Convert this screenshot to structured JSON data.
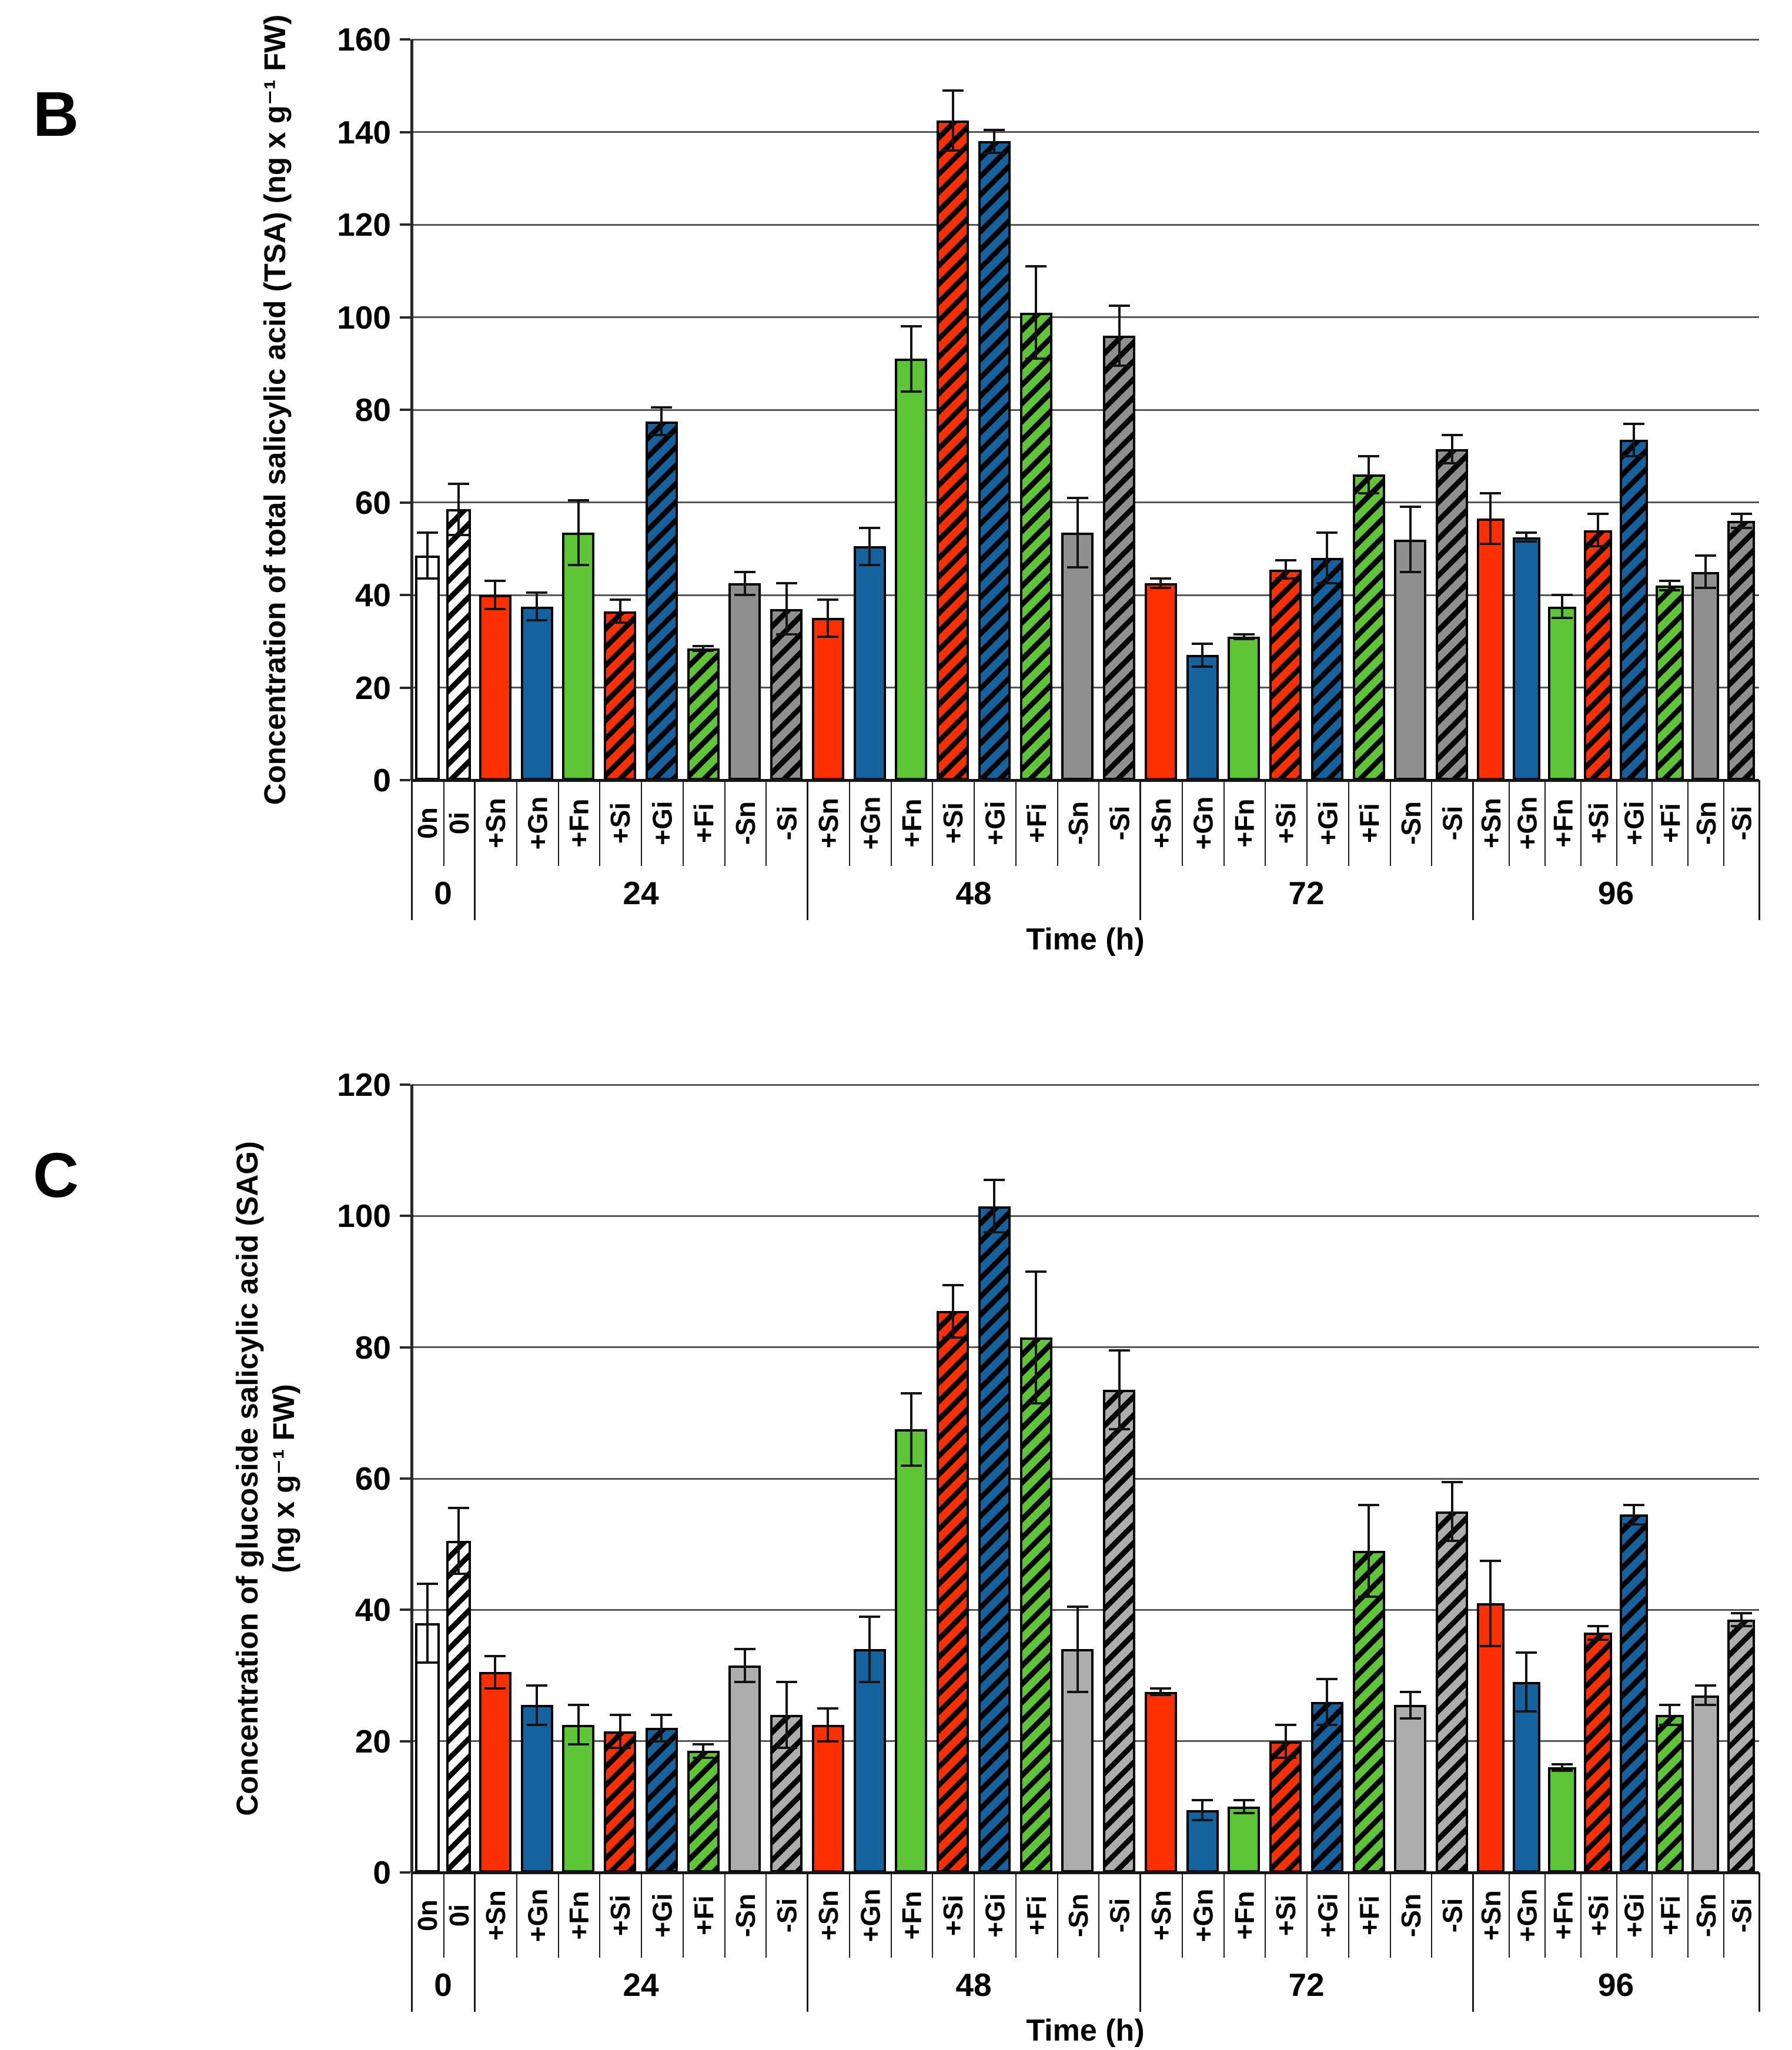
{
  "figure": {
    "panel_letters": [
      "B",
      "C"
    ],
    "treatment_labels": [
      "0n",
      "0i",
      "+Sn",
      "+Gn",
      "+Fn",
      "+Si",
      "+Gi",
      "+Fi",
      "-Sn",
      "-Si"
    ],
    "time_groups": [
      "0",
      "24",
      "48",
      "72",
      "96"
    ]
  },
  "styles": {
    "red": "#FB2F00",
    "blue": "#15639E",
    "green": "#5DC536",
    "gray_b": "#8F8F8F",
    "gray_c": "#ADADAD",
    "white": "#FFFFFF",
    "hatch_stripe": "#000000",
    "gridline_color": "#555555",
    "axis_color": "#161616"
  },
  "chart_data": [
    {
      "type": "bar",
      "panel": "B",
      "title": "",
      "ylabel": "Concentration of total salicylic acid (TSA) (ng x g⁻¹ FW)",
      "ylabel_line2": "",
      "xlabel": "Time (h)",
      "ylim": [
        0,
        160
      ],
      "ytick_step": 20,
      "yticks": [
        0,
        20,
        40,
        60,
        80,
        100,
        120,
        140,
        160
      ],
      "grid": true,
      "legend": "none",
      "group_labels": [
        "0",
        "24",
        "48",
        "72",
        "96"
      ],
      "groups": [
        {
          "time": "0",
          "bars": [
            {
              "label": "0n",
              "value": 48.5,
              "err": 5,
              "color": "white",
              "hatch": false
            },
            {
              "label": "0i",
              "value": 58.5,
              "err": 5.5,
              "color": "white",
              "hatch": true
            }
          ]
        },
        {
          "time": "24",
          "bars": [
            {
              "label": "+Sn",
              "value": 40,
              "err": 3,
              "color": "red",
              "hatch": false
            },
            {
              "label": "+Gn",
              "value": 37.5,
              "err": 3,
              "color": "blue",
              "hatch": false
            },
            {
              "label": "+Fn",
              "value": 53.5,
              "err": 7,
              "color": "green",
              "hatch": false
            },
            {
              "label": "+Si",
              "value": 36.5,
              "err": 2.5,
              "color": "red",
              "hatch": true
            },
            {
              "label": "+Gi",
              "value": 77.5,
              "err": 3,
              "color": "blue",
              "hatch": true
            },
            {
              "label": "+Fi",
              "value": 28.5,
              "err": 0.5,
              "color": "green",
              "hatch": true
            },
            {
              "label": "-Sn",
              "value": 42.5,
              "err": 2.5,
              "color": "gray",
              "hatch": false
            },
            {
              "label": "-Si",
              "value": 37,
              "err": 5.5,
              "color": "gray",
              "hatch": true
            }
          ]
        },
        {
          "time": "48",
          "bars": [
            {
              "label": "+Sn",
              "value": 35,
              "err": 4,
              "color": "red",
              "hatch": false
            },
            {
              "label": "+Gn",
              "value": 50.5,
              "err": 4,
              "color": "blue",
              "hatch": false
            },
            {
              "label": "+Fn",
              "value": 91,
              "err": 7,
              "color": "green",
              "hatch": false
            },
            {
              "label": "+Si",
              "value": 142.5,
              "err": 6.5,
              "color": "red",
              "hatch": true
            },
            {
              "label": "+Gi",
              "value": 138,
              "err": 2.5,
              "color": "blue",
              "hatch": true
            },
            {
              "label": "+Fi",
              "value": 101,
              "err": 10,
              "color": "green",
              "hatch": true
            },
            {
              "label": "-Sn",
              "value": 53.5,
              "err": 7.5,
              "color": "gray",
              "hatch": false
            },
            {
              "label": "-Si",
              "value": 96,
              "err": 6.5,
              "color": "gray",
              "hatch": true
            }
          ]
        },
        {
          "time": "72",
          "bars": [
            {
              "label": "+Sn",
              "value": 42.5,
              "err": 1,
              "color": "red",
              "hatch": false
            },
            {
              "label": "+Gn",
              "value": 27,
              "err": 2.5,
              "color": "blue",
              "hatch": false
            },
            {
              "label": "+Fn",
              "value": 31,
              "err": 0.5,
              "color": "green",
              "hatch": false
            },
            {
              "label": "+Si",
              "value": 45.5,
              "err": 2,
              "color": "red",
              "hatch": true
            },
            {
              "label": "+Gi",
              "value": 48,
              "err": 5.5,
              "color": "blue",
              "hatch": true
            },
            {
              "label": "+Fi",
              "value": 66,
              "err": 4,
              "color": "green",
              "hatch": true
            },
            {
              "label": "-Sn",
              "value": 52,
              "err": 7,
              "color": "gray",
              "hatch": false
            },
            {
              "label": "-Si",
              "value": 71.5,
              "err": 3,
              "color": "gray",
              "hatch": true
            }
          ]
        },
        {
          "time": "96",
          "bars": [
            {
              "label": "+Sn",
              "value": 56.5,
              "err": 5.5,
              "color": "red",
              "hatch": false
            },
            {
              "label": "+Gn",
              "value": 52.5,
              "err": 1,
              "color": "blue",
              "hatch": false
            },
            {
              "label": "+Fn",
              "value": 37.5,
              "err": 2.5,
              "color": "green",
              "hatch": false
            },
            {
              "label": "+Si",
              "value": 54,
              "err": 3.5,
              "color": "red",
              "hatch": true
            },
            {
              "label": "+Gi",
              "value": 73.5,
              "err": 3.5,
              "color": "blue",
              "hatch": true
            },
            {
              "label": "+Fi",
              "value": 42,
              "err": 1,
              "color": "green",
              "hatch": true
            },
            {
              "label": "-Sn",
              "value": 45,
              "err": 3.5,
              "color": "gray",
              "hatch": false
            },
            {
              "label": "-Si",
              "value": 56,
              "err": 1.5,
              "color": "gray",
              "hatch": true
            }
          ]
        }
      ]
    },
    {
      "type": "bar",
      "panel": "C",
      "title": "",
      "ylabel": "Concentration of glucoside salicylic acid (SAG)",
      "ylabel_line2": "(ng x g⁻¹ FW)",
      "xlabel": "Time (h)",
      "ylim": [
        0,
        120
      ],
      "ytick_step": 20,
      "yticks": [
        0,
        20,
        40,
        60,
        80,
        100,
        120
      ],
      "grid": true,
      "legend": "none",
      "group_labels": [
        "0",
        "24",
        "48",
        "72",
        "96"
      ],
      "groups": [
        {
          "time": "0",
          "bars": [
            {
              "label": "0n",
              "value": 38,
              "err": 6,
              "color": "white",
              "hatch": false
            },
            {
              "label": "0i",
              "value": 50.5,
              "err": 5,
              "color": "white",
              "hatch": true
            }
          ]
        },
        {
          "time": "24",
          "bars": [
            {
              "label": "+Sn",
              "value": 30.5,
              "err": 2.5,
              "color": "red",
              "hatch": false
            },
            {
              "label": "+Gn",
              "value": 25.5,
              "err": 3,
              "color": "blue",
              "hatch": false
            },
            {
              "label": "+Fn",
              "value": 22.5,
              "err": 3,
              "color": "green",
              "hatch": false
            },
            {
              "label": "+Si",
              "value": 21.5,
              "err": 2.5,
              "color": "red",
              "hatch": true
            },
            {
              "label": "+Gi",
              "value": 22,
              "err": 2,
              "color": "blue",
              "hatch": true
            },
            {
              "label": "+Fi",
              "value": 18.5,
              "err": 1,
              "color": "green",
              "hatch": true
            },
            {
              "label": "-Sn",
              "value": 31.5,
              "err": 2.5,
              "color": "gray",
              "hatch": false
            },
            {
              "label": "-Si",
              "value": 24,
              "err": 5,
              "color": "gray",
              "hatch": true
            }
          ]
        },
        {
          "time": "48",
          "bars": [
            {
              "label": "+Sn",
              "value": 22.5,
              "err": 2.5,
              "color": "red",
              "hatch": false
            },
            {
              "label": "+Gn",
              "value": 34,
              "err": 5,
              "color": "blue",
              "hatch": false
            },
            {
              "label": "+Fn",
              "value": 67.5,
              "err": 5.5,
              "color": "green",
              "hatch": false
            },
            {
              "label": "+Si",
              "value": 85.5,
              "err": 4,
              "color": "red",
              "hatch": true
            },
            {
              "label": "+Gi",
              "value": 101.5,
              "err": 4,
              "color": "blue",
              "hatch": true
            },
            {
              "label": "+Fi",
              "value": 81.5,
              "err": 10,
              "color": "green",
              "hatch": true
            },
            {
              "label": "-Sn",
              "value": 34,
              "err": 6.5,
              "color": "gray",
              "hatch": false
            },
            {
              "label": "-Si",
              "value": 73.5,
              "err": 6,
              "color": "gray",
              "hatch": true
            }
          ]
        },
        {
          "time": "72",
          "bars": [
            {
              "label": "+Sn",
              "value": 27.5,
              "err": 0.5,
              "color": "red",
              "hatch": false
            },
            {
              "label": "+Gn",
              "value": 9.5,
              "err": 1.5,
              "color": "blue",
              "hatch": false
            },
            {
              "label": "+Fn",
              "value": 10,
              "err": 1,
              "color": "green",
              "hatch": false
            },
            {
              "label": "+Si",
              "value": 20,
              "err": 2.5,
              "color": "red",
              "hatch": true
            },
            {
              "label": "+Gi",
              "value": 26,
              "err": 3.5,
              "color": "blue",
              "hatch": true
            },
            {
              "label": "+Fi",
              "value": 49,
              "err": 7,
              "color": "green",
              "hatch": true
            },
            {
              "label": "-Sn",
              "value": 25.5,
              "err": 2,
              "color": "gray",
              "hatch": false
            },
            {
              "label": "-Si",
              "value": 55,
              "err": 4.5,
              "color": "gray",
              "hatch": true
            }
          ]
        },
        {
          "time": "96",
          "bars": [
            {
              "label": "+Sn",
              "value": 41,
              "err": 6.5,
              "color": "red",
              "hatch": false
            },
            {
              "label": "+Gn",
              "value": 29,
              "err": 4.5,
              "color": "blue",
              "hatch": false
            },
            {
              "label": "+Fn",
              "value": 16,
              "err": 0.5,
              "color": "green",
              "hatch": false
            },
            {
              "label": "+Si",
              "value": 36.5,
              "err": 1,
              "color": "red",
              "hatch": true
            },
            {
              "label": "+Gi",
              "value": 54.5,
              "err": 1.5,
              "color": "blue",
              "hatch": true
            },
            {
              "label": "+Fi",
              "value": 24,
              "err": 1.5,
              "color": "green",
              "hatch": true
            },
            {
              "label": "-Sn",
              "value": 27,
              "err": 1.5,
              "color": "gray",
              "hatch": false
            },
            {
              "label": "-Si",
              "value": 38.5,
              "err": 1,
              "color": "gray",
              "hatch": true
            }
          ]
        }
      ]
    }
  ]
}
